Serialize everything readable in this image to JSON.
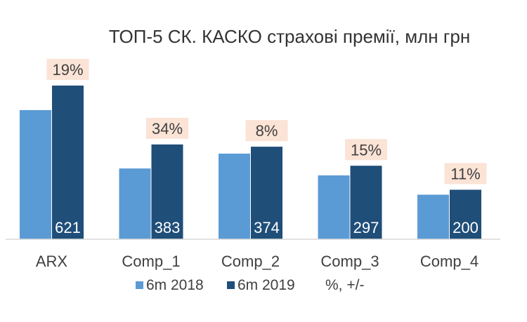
{
  "chart_data": {
    "type": "bar",
    "title": "ТОП-5 СК. КАСКО страхові премії, млн грн",
    "categories": [
      "ARX",
      "Comp_1",
      "Comp_2",
      "Comp_3",
      "Comp_4"
    ],
    "series": [
      {
        "name": "6m 2018",
        "values": [
          522,
          286,
          346,
          258,
          180
        ],
        "color": "#5b9bd5",
        "show_labels": false
      },
      {
        "name": "6m 2019",
        "values": [
          621,
          383,
          374,
          297,
          200
        ],
        "color": "#1f4e79",
        "show_labels": true
      }
    ],
    "growth_labels": [
      "19%",
      "34%",
      "8%",
      "15%",
      "11%"
    ],
    "growth_series_name": "%, +/-",
    "growth_label_bg": "#fbe3d6",
    "xlabel": "",
    "ylabel": "",
    "ylim": [
      0,
      650
    ],
    "grid": false,
    "legend": "bottom"
  }
}
